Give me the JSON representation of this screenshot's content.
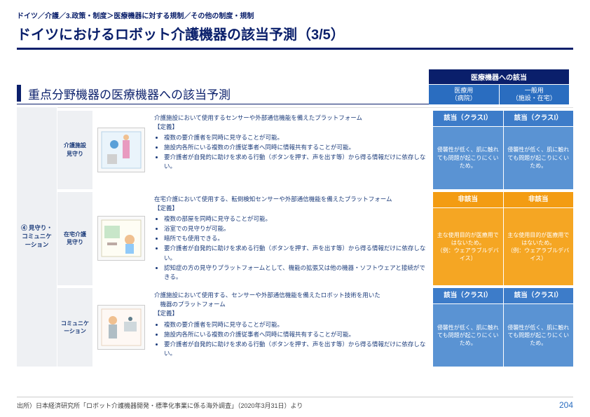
{
  "breadcrumb": "ドイツ／介護／3.政策・制度＞医療機器に対する規制／その他の制度・規制",
  "title": "ドイツにおけるロボット介護機器の該当予測（3/5）",
  "section_title": "重点分野機器の医療機器への該当予測",
  "head_top": "医療機器への該当",
  "head_medical": "医療用\n（病院）",
  "head_general": "一般用\n（施設・在宅）",
  "category": "④ 見守り・コミュニケーション",
  "colors": {
    "blue_h": "#3d7cc9",
    "blue_b": "#5a93d3",
    "orange_h": "#f39c12",
    "orange_b": "#f5a623"
  },
  "rows": [
    {
      "name": "介護施設\n見守り",
      "lead": "介護施設において使用するセンサーや外部通信機能を備えたプラットフォーム\n【定義】",
      "bullets": [
        "複数の要介護者を同時に見守ることが可能。",
        "施設内各所にいる複数の介護従事者へ同時に情報共有することが可能。",
        "要介護者が自発的に助けを求める行動（ボタンを押す、声を出す等）から得る情報だけに依存しない。"
      ],
      "cells": [
        {
          "head": "該当（クラスⅠ）",
          "body": "侵襲性が低く、肌に触れても問題が起こりにくいため。",
          "style": "blue"
        },
        {
          "head": "該当（クラスⅠ）",
          "body": "侵襲性が低く、肌に触れても問題が起こりにくいため。",
          "style": "blue"
        }
      ]
    },
    {
      "name": "在宅介護\n見守り",
      "lead": "在宅介護において使用する、転倒検知センサーや外部通信機能を備えたプラットフォーム\n【定義】",
      "bullets": [
        "複数の部屋を同時に見守ることが可能。",
        "浴室での見守りが可能。",
        "暗所でも使用できる。",
        "要介護者が自発的に助けを求める行動（ボタンを押す、声を出す等）から得る情報だけに依存しない。",
        "認知症の方の見守りプラットフォームとして、機能の拡張又は他の機器・ソフトウェアと接続ができる。"
      ],
      "cells": [
        {
          "head": "非該当",
          "body": "主な使用目的が医療用ではないため。\n（例：ウェアラブルデバイス）",
          "style": "orange"
        },
        {
          "head": "非該当",
          "body": "主な使用目的が医療用ではないため。\n（例：ウェアラブルデバイス）",
          "style": "orange"
        }
      ]
    },
    {
      "name": "コミュニケーション",
      "lead": "介護施設において使用する、センサーや外部通信機能を備えたロボット技術を用いた\n　機器のプラットフォーム\n【定義】",
      "bullets": [
        "複数の要介護者を同時に見守ることが可能。",
        "施設内各所にいる複数の介護従事者へ同時に情報共有することが可能。",
        "要介護者が自発的に助けを求める行動（ボタンを押す、声を出す等）から得る情報だけに依存しない。"
      ],
      "cells": [
        {
          "head": "該当（クラスⅠ）",
          "body": "侵襲性が低く、肌に触れても問題が起こりにくいため。",
          "style": "blue"
        },
        {
          "head": "該当（クラスⅠ）",
          "body": "侵襲性が低く、肌に触れても問題が起こりにくいため。",
          "style": "blue"
        }
      ]
    }
  ],
  "source": "出所）日本経済研究所「ロボット介護機器開発・標準化事業に係る海外調査」（2020年3月31日）より",
  "page_number": "204"
}
